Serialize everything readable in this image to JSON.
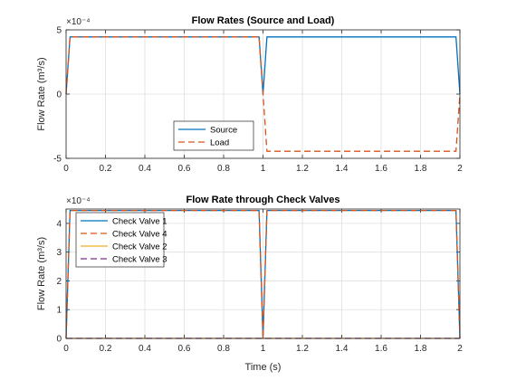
{
  "chart_data": [
    {
      "type": "line",
      "title": "Flow Rates (Source and Load)",
      "xlabel": "",
      "ylabel": "Flow Rate (m³/s)",
      "yexponent": "×10⁻⁴",
      "xlim": [
        0,
        2
      ],
      "ylim": [
        -5,
        5
      ],
      "xticks": [
        "0",
        "0.2",
        "0.4",
        "0.6",
        "0.8",
        "1",
        "1.2",
        "1.4",
        "1.6",
        "1.8",
        "2"
      ],
      "yticks": [
        "-5",
        "0",
        "5"
      ],
      "grid": true,
      "legend_position": "bottom-center",
      "series": [
        {
          "name": "Source",
          "color": "#0072BD",
          "dash": "solid",
          "x": [
            0,
            0.02,
            0.98,
            1.0,
            1.02,
            1.98,
            2.0
          ],
          "y": [
            0,
            4.45,
            4.45,
            0,
            4.45,
            4.45,
            0
          ]
        },
        {
          "name": "Load",
          "color": "#D95319",
          "dash": "dashed",
          "x": [
            0,
            0.02,
            0.98,
            1.0,
            1.02,
            1.98,
            2.0
          ],
          "y": [
            0,
            4.45,
            4.45,
            0,
            -4.45,
            -4.45,
            0
          ]
        }
      ]
    },
    {
      "type": "line",
      "title": "Flow Rate through Check Valves",
      "xlabel": "Time (s)",
      "ylabel": "Flow Rate (m³/s)",
      "yexponent": "×10⁻⁴",
      "xlim": [
        0,
        2
      ],
      "ylim": [
        0,
        4.5
      ],
      "xticks": [
        "0",
        "0.2",
        "0.4",
        "0.6",
        "0.8",
        "1",
        "1.2",
        "1.4",
        "1.6",
        "1.8",
        "2"
      ],
      "yticks": [
        "0",
        "1",
        "2",
        "3",
        "4"
      ],
      "grid": true,
      "legend_position": "top-left",
      "series": [
        {
          "name": "Check Valve 1",
          "color": "#0072BD",
          "dash": "solid",
          "x": [
            0,
            0.02,
            0.98,
            1.0,
            1.02,
            1.98,
            2.0
          ],
          "y": [
            0,
            4.45,
            4.45,
            0,
            4.45,
            4.45,
            0
          ]
        },
        {
          "name": "Check Valve 4",
          "color": "#D95319",
          "dash": "dashed",
          "x": [
            0,
            0.02,
            0.98,
            1.0,
            1.02,
            1.98,
            2.0
          ],
          "y": [
            0,
            4.45,
            4.45,
            0,
            4.45,
            4.45,
            0
          ]
        },
        {
          "name": "Check Valve 2",
          "color": "#EDB120",
          "dash": "solid",
          "x": [
            0,
            2.0
          ],
          "y": [
            0,
            0
          ]
        },
        {
          "name": "Check Valve 3",
          "color": "#7E2F8E",
          "dash": "dashed",
          "x": [
            0,
            2.0
          ],
          "y": [
            0,
            0
          ]
        }
      ]
    }
  ]
}
